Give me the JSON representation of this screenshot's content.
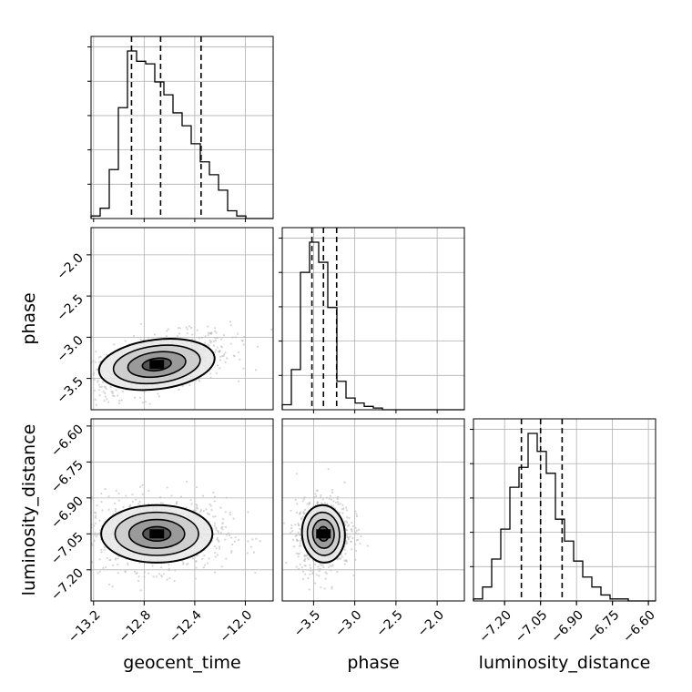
{
  "chart_data": {
    "type": "corner",
    "parameters": [
      "geocent_time",
      "phase",
      "luminosity_distance"
    ],
    "ranges": {
      "geocent_time": [
        -13.22,
        -11.78
      ],
      "phase": [
        -3.88,
        -1.67
      ],
      "luminosity_distance": [
        -7.33,
        -6.57
      ]
    },
    "ticks": {
      "geocent_time": {
        "values": [
          -13.2,
          -12.8,
          -12.4,
          -12.0
        ],
        "labels": [
          "−13.2",
          "−12.8",
          "−12.4",
          "−12.0"
        ]
      },
      "phase": {
        "values": [
          -3.5,
          -3.0,
          -2.5,
          -2.0
        ],
        "labels": [
          "−3.5",
          "−3.0",
          "−2.5",
          "−2.0"
        ]
      },
      "luminosity_distance": {
        "values": [
          -7.2,
          -7.05,
          -6.9,
          -6.75,
          -6.6
        ],
        "labels": [
          "−7.20",
          "−7.05",
          "−6.90",
          "−6.75",
          "−6.60"
        ]
      }
    },
    "quantiles": {
      "geocent_time": [
        -12.9,
        -12.67,
        -12.35
      ],
      "phase": [
        -3.52,
        -3.38,
        -3.22
      ],
      "luminosity_distance": [
        -7.13,
        -7.05,
        -6.96
      ]
    },
    "histograms": {
      "geocent_time": {
        "edges_start": -13.22,
        "bin_width": 0.072,
        "counts": [
          1,
          4,
          19,
          43,
          65,
          61,
          60,
          53,
          48,
          41,
          36,
          29,
          22,
          17,
          11,
          3,
          1,
          0,
          0,
          0
        ]
      },
      "phase": {
        "edges_start": -3.88,
        "bin_width": 0.1105,
        "counts": [
          3,
          24,
          82,
          100,
          88,
          61,
          17,
          7,
          4,
          2,
          1,
          0,
          0,
          0,
          0,
          0,
          0,
          0,
          0,
          0
        ]
      },
      "luminosity_distance": {
        "edges_start": -7.33,
        "bin_width": 0.038,
        "counts": [
          1,
          7,
          21,
          36,
          57,
          67,
          84,
          75,
          64,
          41,
          30,
          20,
          12,
          7,
          3,
          1,
          1,
          0,
          0,
          0
        ]
      }
    },
    "joint": {
      "phase_vs_geocent_time": {
        "x": "geocent_time",
        "y": "phase",
        "mean": [
          -12.7,
          -3.33
        ],
        "sigma": [
          0.23,
          0.15
        ],
        "rho": 0.5
      },
      "luminosity_distance_vs_geocent_time": {
        "x": "geocent_time",
        "y": "luminosity_distance",
        "mean": [
          -12.7,
          -7.05
        ],
        "sigma": [
          0.22,
          0.06
        ],
        "rho": 0.0
      },
      "luminosity_distance_vs_phase": {
        "x": "phase",
        "y": "luminosity_distance",
        "mean": [
          -3.38,
          -7.05
        ],
        "sigma": [
          0.13,
          0.06
        ],
        "rho": 0.1
      }
    },
    "grid": true,
    "colors": {
      "line": "#000000",
      "grid": "#b0b0b0",
      "points": "#bbbbbb"
    }
  }
}
